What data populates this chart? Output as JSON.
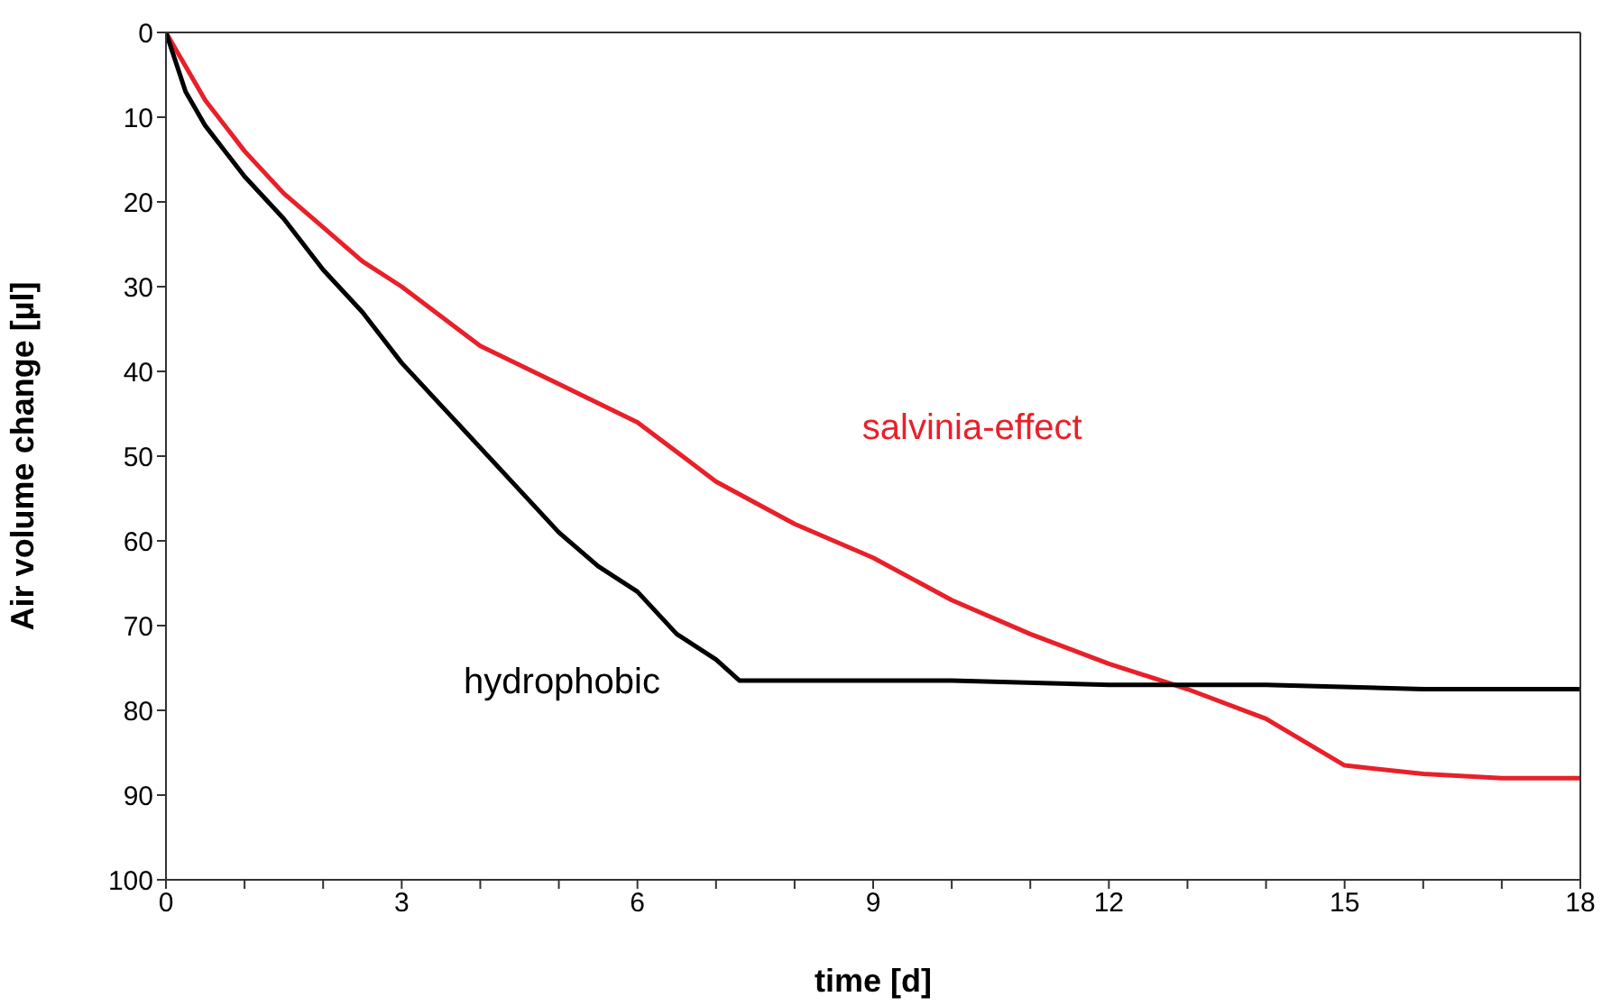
{
  "chart_data": {
    "type": "line",
    "xlabel": "time [d]",
    "ylabel": "Air volume change [µl]",
    "xlim": [
      0,
      18
    ],
    "ylim": [
      100,
      0
    ],
    "xticks": [
      0,
      {
        "value": 1,
        "label": null
      },
      {
        "value": 2,
        "label": null
      },
      3,
      {
        "value": 4,
        "label": null
      },
      {
        "value": 5,
        "label": null
      },
      6,
      {
        "value": 7,
        "label": null
      },
      {
        "value": 8,
        "label": null
      },
      9,
      {
        "value": 10,
        "label": null
      },
      {
        "value": 11,
        "label": null
      },
      12,
      {
        "value": 13,
        "label": null
      },
      {
        "value": 14,
        "label": null
      },
      15,
      {
        "value": 16,
        "label": null
      },
      {
        "value": 17,
        "label": null
      },
      18
    ],
    "yticks": [
      0,
      10,
      20,
      30,
      40,
      50,
      60,
      70,
      80,
      90,
      100
    ],
    "grid": false,
    "legend": false,
    "marker": "none",
    "line_style": "solid",
    "series": [
      {
        "name": "salvinia-effect",
        "color": "#e8202a",
        "x": [
          0,
          0.5,
          1,
          1.5,
          2,
          2.5,
          3,
          4,
          5,
          6,
          7,
          8,
          9,
          10,
          11,
          12,
          13,
          14,
          15,
          16,
          17,
          18
        ],
        "values": [
          0,
          8,
          14,
          19,
          23,
          27,
          30,
          37,
          41.5,
          46,
          53,
          58,
          62,
          67,
          71,
          74.5,
          77.5,
          81,
          86.5,
          87.5,
          88,
          88
        ]
      },
      {
        "name": "hydrophobic",
        "color": "#000000",
        "x": [
          0,
          0.25,
          0.5,
          1,
          1.5,
          2,
          2.5,
          3,
          3.5,
          4,
          4.5,
          5,
          5.5,
          6,
          6.5,
          7,
          7.3,
          8,
          10,
          12,
          14,
          16,
          18
        ],
        "values": [
          0,
          7,
          11,
          17,
          22,
          28,
          33,
          39,
          44,
          49,
          54,
          59,
          63,
          66,
          71,
          74,
          76.5,
          76.5,
          76.5,
          77,
          77,
          77.5,
          77.5
        ]
      }
    ]
  }
}
